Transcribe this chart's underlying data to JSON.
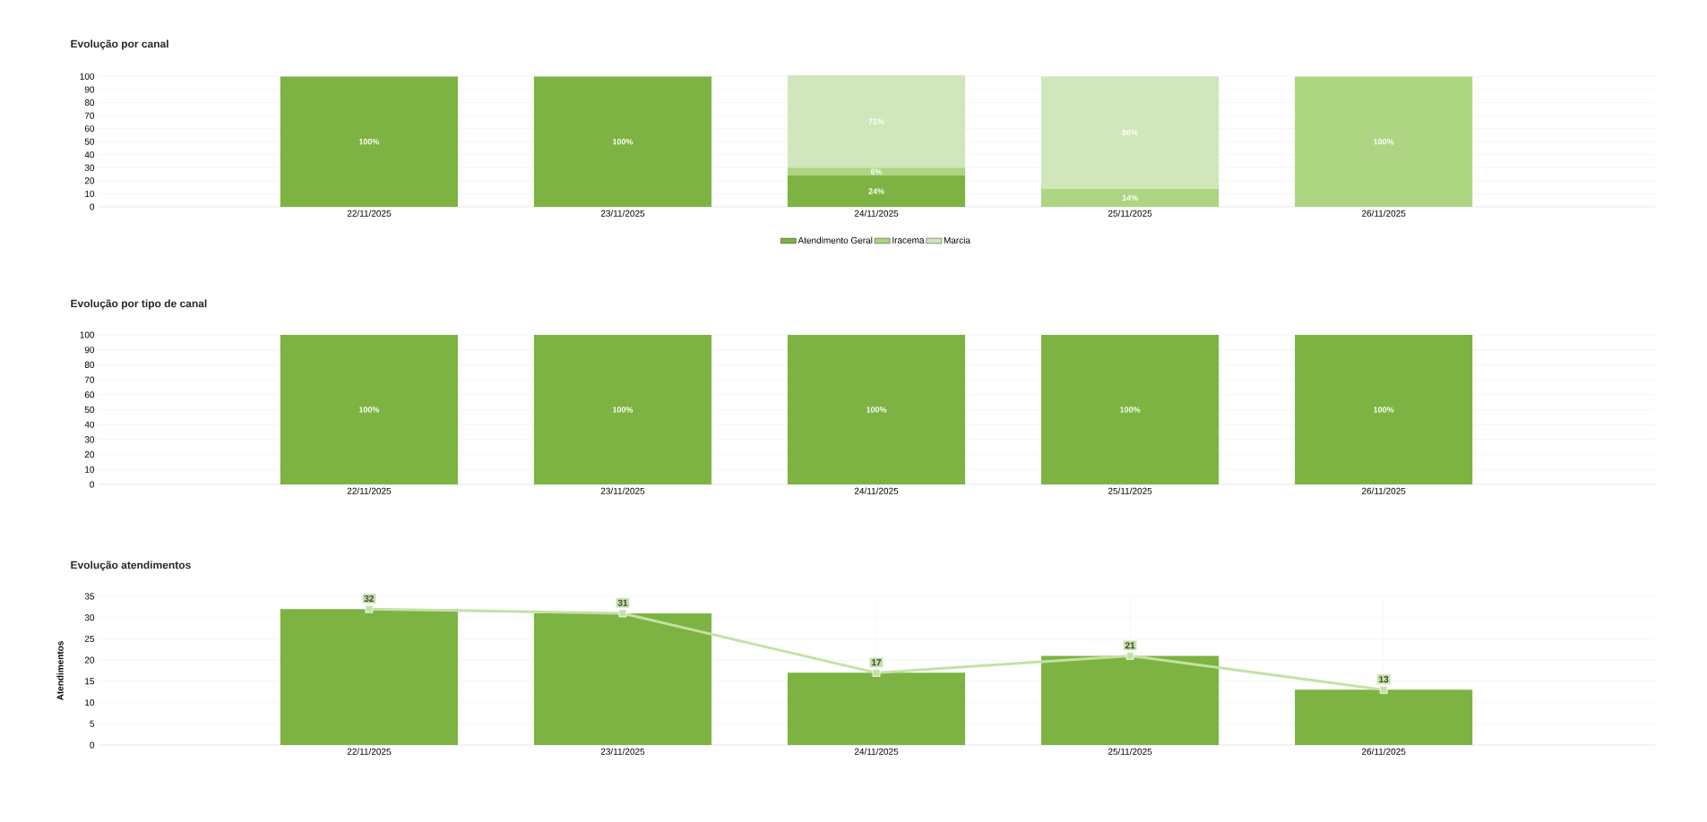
{
  "chart_data": [
    {
      "type": "bar",
      "title": "Evolução por canal",
      "stacked": true,
      "categories": [
        "22/11/2025",
        "23/11/2025",
        "24/11/2025",
        "25/11/2025",
        "26/11/2025"
      ],
      "series": [
        {
          "name": "Atendimento Geral",
          "color": "#7cb342",
          "values": [
            100,
            100,
            24,
            null,
            null
          ],
          "value_labels": [
            "100%",
            "100%",
            "24%",
            null,
            null
          ]
        },
        {
          "name": "Iracema",
          "color": "#aed581",
          "values": [
            null,
            null,
            6,
            14,
            100
          ],
          "value_labels": [
            null,
            null,
            "6%",
            "14%",
            "100%"
          ]
        },
        {
          "name": "Marcia",
          "color": "#d0e6bb",
          "values": [
            null,
            null,
            71,
            86,
            null
          ],
          "value_labels": [
            null,
            null,
            "71%",
            "86%",
            null
          ]
        }
      ],
      "ylim": [
        0,
        101
      ],
      "yticks": [
        0,
        10,
        20,
        30,
        40,
        50,
        60,
        70,
        80,
        90,
        100
      ],
      "grid": "y",
      "legend": "bottom"
    },
    {
      "type": "bar",
      "title": "Evolução por tipo de canal",
      "categories": [
        "22/11/2025",
        "23/11/2025",
        "24/11/2025",
        "25/11/2025",
        "26/11/2025"
      ],
      "series": [
        {
          "color": "#7cb342",
          "values": [
            100,
            100,
            100,
            100,
            100
          ],
          "value_labels": [
            "100%",
            "100%",
            "100%",
            "100%",
            "100%"
          ]
        }
      ],
      "ylim": [
        0,
        100
      ],
      "yticks": [
        0,
        10,
        20,
        30,
        40,
        50,
        60,
        70,
        80,
        90,
        100
      ],
      "grid": "y"
    },
    {
      "type": "bar",
      "title": "Evolução atendimentos",
      "ylabel": "Atendimentos",
      "categories": [
        "22/11/2025",
        "23/11/2025",
        "24/11/2025",
        "25/11/2025",
        "26/11/2025"
      ],
      "series": [
        {
          "color": "#7cb342",
          "values": [
            32,
            31,
            17,
            21,
            13
          ]
        },
        {
          "type": "line",
          "marker": "square",
          "color": "#c5e1a5",
          "values": [
            32,
            31,
            17,
            21,
            13
          ],
          "value_labels": [
            "32",
            "31",
            "17",
            "21",
            "13"
          ]
        }
      ],
      "ylim": [
        0,
        35
      ],
      "yticks": [
        0,
        5,
        10,
        15,
        20,
        25,
        30,
        35
      ],
      "grid": true
    }
  ]
}
